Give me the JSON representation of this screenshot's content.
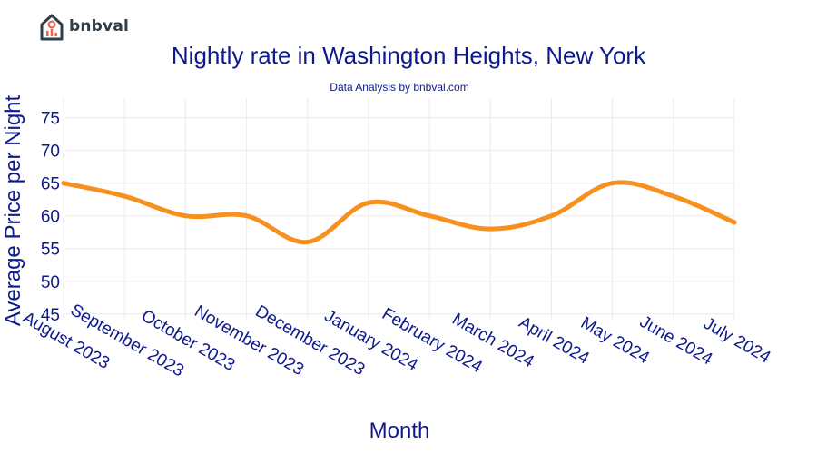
{
  "brand": {
    "name": "bnbval"
  },
  "colors": {
    "line": "#f7901e",
    "text": "#0e1a8c",
    "grid": "#ececec"
  },
  "chart_data": {
    "type": "line",
    "title": "Nightly rate in Washington Heights, New York",
    "subtitle": "Data Analysis by bnbval.com",
    "xlabel": "Month",
    "ylabel": "Average Price per Night",
    "categories": [
      "August 2023",
      "September 2023",
      "October 2023",
      "November 2023",
      "December 2023",
      "January 2024",
      "February 2024",
      "March 2024",
      "April 2024",
      "May 2024",
      "June 2024",
      "July 2024"
    ],
    "series": [
      {
        "values": [
          65,
          63,
          60,
          60,
          56,
          62,
          60,
          58,
          60,
          65,
          63,
          59
        ]
      }
    ],
    "yticks": [
      45,
      50,
      55,
      60,
      65,
      70,
      75
    ],
    "ylim": [
      44,
      78
    ],
    "grid": true,
    "legend": "none"
  }
}
